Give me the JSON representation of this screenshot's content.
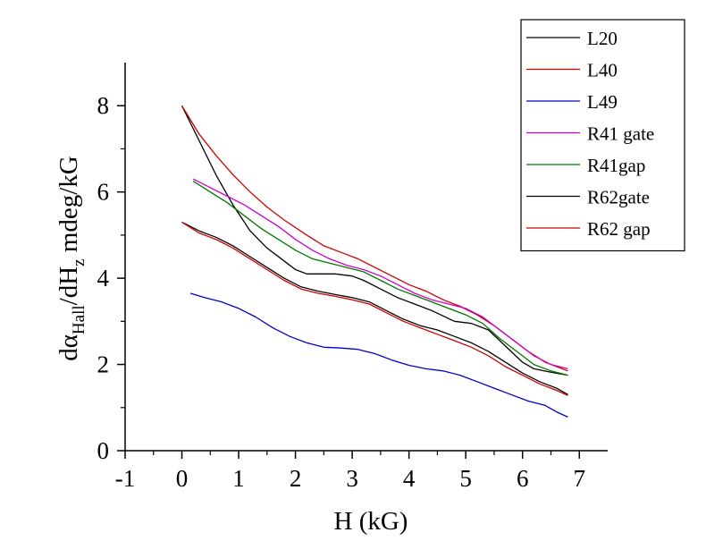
{
  "chart_data": {
    "type": "line",
    "title": "",
    "xlabel": "H (kG)",
    "ylabel": {
      "part1": "dα",
      "sub1": "Hall",
      "part2": "/dH",
      "sub2": "z",
      "part3": " mdeg/kG"
    },
    "xlim": [
      -1,
      7.5
    ],
    "ylim": [
      0,
      9
    ],
    "x_ticks": [
      -1,
      0,
      1,
      2,
      3,
      4,
      5,
      6,
      7
    ],
    "x_tick_labels": [
      "-1",
      "0",
      "1",
      "2",
      "3",
      "4",
      "5",
      "6",
      "7"
    ],
    "y_ticks": [
      0,
      2,
      4,
      6,
      8
    ],
    "y_tick_labels": [
      "0",
      "2",
      "4",
      "6",
      "8"
    ],
    "grid": false,
    "legend_position": "top-right",
    "series": [
      {
        "name": "L20",
        "color": "#000000",
        "x": [
          0,
          0.3,
          0.6,
          0.9,
          1.2,
          1.5,
          1.8,
          2.0,
          2.2,
          2.4,
          2.7,
          3.0,
          3.2,
          3.5,
          3.8,
          4.1,
          4.4,
          4.8,
          5.1,
          5.4,
          5.6,
          5.8,
          6.0,
          6.2,
          6.5,
          6.8
        ],
        "values": [
          8.0,
          7.2,
          6.4,
          5.7,
          5.1,
          4.7,
          4.4,
          4.2,
          4.1,
          4.1,
          4.1,
          4.05,
          3.95,
          3.75,
          3.55,
          3.4,
          3.25,
          3.0,
          2.95,
          2.8,
          2.55,
          2.3,
          2.05,
          1.9,
          1.82,
          1.75
        ]
      },
      {
        "name": "L40",
        "color": "#cc0000",
        "x": [
          0,
          0.3,
          0.6,
          0.9,
          1.2,
          1.5,
          1.8,
          2.2,
          2.5,
          2.8,
          3.1,
          3.4,
          3.7,
          4.0,
          4.3,
          4.6,
          4.9,
          5.2,
          5.5,
          5.8,
          6.1,
          6.4,
          6.8
        ],
        "values": [
          8.0,
          7.35,
          6.85,
          6.4,
          6.0,
          5.65,
          5.35,
          5.0,
          4.75,
          4.6,
          4.45,
          4.25,
          4.05,
          3.85,
          3.7,
          3.5,
          3.35,
          3.15,
          2.9,
          2.6,
          2.3,
          2.05,
          1.85
        ]
      },
      {
        "name": "L49",
        "color": "#0000cc",
        "x": [
          0.15,
          0.4,
          0.7,
          1.0,
          1.3,
          1.6,
          1.9,
          2.2,
          2.5,
          2.8,
          3.1,
          3.4,
          3.7,
          4.0,
          4.3,
          4.6,
          4.9,
          5.2,
          5.5,
          5.8,
          6.1,
          6.4,
          6.6,
          6.8
        ],
        "values": [
          3.65,
          3.55,
          3.45,
          3.3,
          3.1,
          2.85,
          2.65,
          2.5,
          2.4,
          2.38,
          2.35,
          2.25,
          2.1,
          1.98,
          1.9,
          1.85,
          1.75,
          1.6,
          1.45,
          1.3,
          1.15,
          1.05,
          0.9,
          0.78
        ]
      },
      {
        "name": "R41 gate",
        "color": "#cc00cc",
        "x": [
          0.2,
          0.5,
          0.8,
          1.1,
          1.4,
          1.7,
          2.0,
          2.3,
          2.6,
          2.9,
          3.2,
          3.5,
          3.8,
          4.1,
          4.4,
          4.7,
          5.0,
          5.3,
          5.6,
          5.9,
          6.2,
          6.5,
          6.8
        ],
        "values": [
          6.3,
          6.1,
          5.9,
          5.7,
          5.45,
          5.2,
          4.9,
          4.65,
          4.45,
          4.3,
          4.2,
          4.05,
          3.85,
          3.65,
          3.5,
          3.4,
          3.3,
          3.1,
          2.8,
          2.5,
          2.2,
          2.0,
          1.9
        ]
      },
      {
        "name": "R41gap",
        "color": "#007700",
        "x": [
          0.2,
          0.5,
          0.8,
          1.1,
          1.4,
          1.7,
          2.0,
          2.3,
          2.6,
          2.9,
          3.2,
          3.5,
          3.8,
          4.1,
          4.4,
          4.7,
          5.0,
          5.3,
          5.6,
          5.9,
          6.2,
          6.5,
          6.8
        ],
        "values": [
          6.25,
          6.0,
          5.75,
          5.45,
          5.15,
          4.9,
          4.65,
          4.45,
          4.35,
          4.25,
          4.15,
          3.95,
          3.75,
          3.6,
          3.45,
          3.3,
          3.15,
          2.95,
          2.6,
          2.3,
          2.0,
          1.85,
          1.75
        ]
      },
      {
        "name": "R62gate",
        "color": "#000000",
        "x": [
          0,
          0.3,
          0.6,
          0.9,
          1.2,
          1.5,
          1.8,
          2.1,
          2.4,
          2.7,
          3.0,
          3.3,
          3.6,
          3.9,
          4.2,
          4.5,
          4.8,
          5.1,
          5.4,
          5.7,
          6.0,
          6.3,
          6.6,
          6.8
        ],
        "values": [
          5.3,
          5.1,
          4.95,
          4.75,
          4.5,
          4.25,
          4.0,
          3.8,
          3.7,
          3.62,
          3.55,
          3.45,
          3.25,
          3.05,
          2.9,
          2.8,
          2.65,
          2.5,
          2.3,
          2.05,
          1.8,
          1.6,
          1.45,
          1.3
        ]
      },
      {
        "name": "R62 gap",
        "color": "#cc0000",
        "x": [
          0,
          0.3,
          0.6,
          0.9,
          1.2,
          1.5,
          1.8,
          2.1,
          2.4,
          2.7,
          3.0,
          3.3,
          3.6,
          3.9,
          4.2,
          4.5,
          4.8,
          5.1,
          5.4,
          5.7,
          6.0,
          6.3,
          6.6,
          6.8
        ],
        "values": [
          5.3,
          5.05,
          4.9,
          4.7,
          4.45,
          4.2,
          3.95,
          3.75,
          3.65,
          3.58,
          3.5,
          3.4,
          3.2,
          3.0,
          2.85,
          2.7,
          2.55,
          2.4,
          2.2,
          1.95,
          1.75,
          1.55,
          1.4,
          1.28
        ]
      }
    ]
  }
}
